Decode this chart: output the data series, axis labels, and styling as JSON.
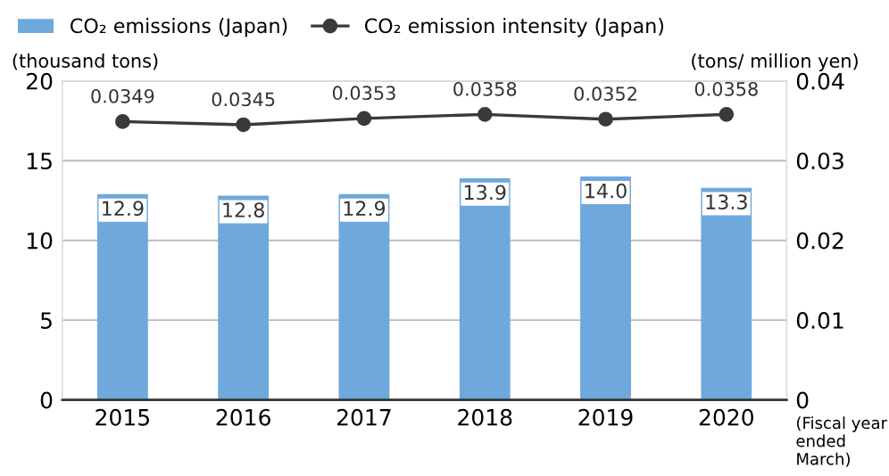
{
  "chart_data": {
    "type": "bar",
    "categories": [
      "2015",
      "2016",
      "2017",
      "2018",
      "2019",
      "2020"
    ],
    "series": [
      {
        "name": "CO₂ emissions (Japan)",
        "color": "#6fa8dc",
        "values": [
          12.9,
          12.8,
          12.9,
          13.9,
          14.0,
          13.3
        ],
        "value_labels": [
          "12.9",
          "12.8",
          "12.9",
          "13.9",
          "14.0",
          "13.3"
        ]
      },
      {
        "name": "CO₂ emission intensity (Japan)",
        "type": "line",
        "axis": "y2",
        "color": "#3a3a3a",
        "marker": "circle",
        "values": [
          0.0349,
          0.0345,
          0.0353,
          0.0358,
          0.0352,
          0.0358
        ]
      }
    ],
    "ylabel": "(thousand tons)",
    "y2label": "(tons/ million yen)",
    "xlabel": "(Fiscal year ended March)",
    "ylim": [
      0,
      20
    ],
    "yticks": [
      0,
      5,
      10,
      15,
      20
    ],
    "y2lim": [
      0,
      0.04
    ],
    "y2ticks": [
      0,
      0.01,
      0.02,
      0.03,
      0.04
    ],
    "grid": "y",
    "legend": "top",
    "data_labels": true
  }
}
